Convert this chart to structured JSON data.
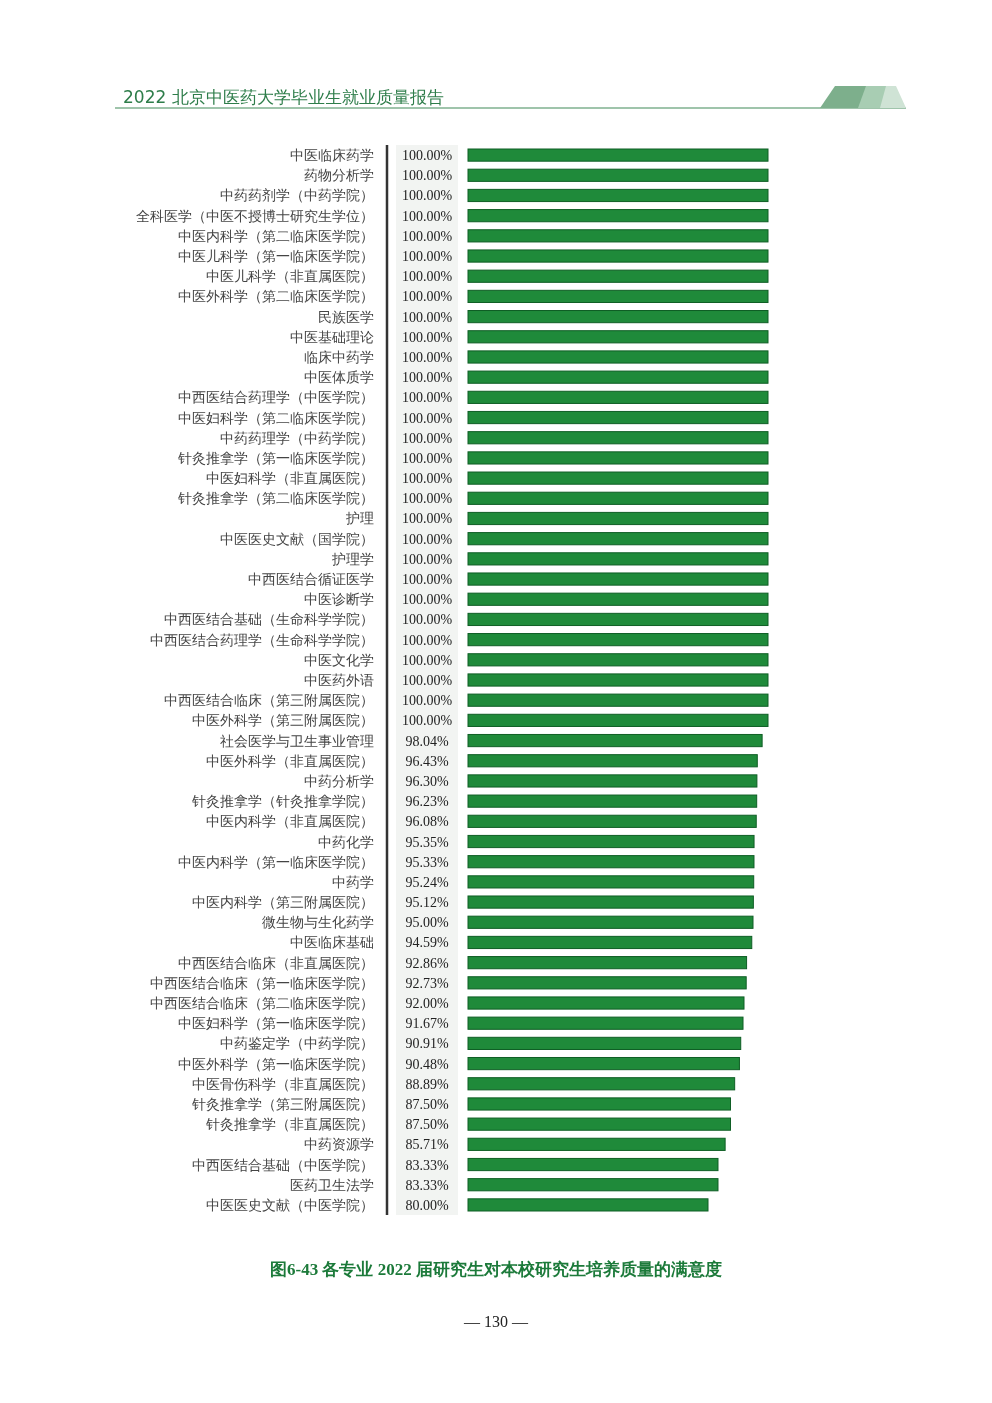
{
  "chart_data": {
    "type": "bar",
    "orientation": "horizontal",
    "title": "图6-43 各专业 2022 届研究生对本校研究生培养质量的满意度",
    "annotations": [
      "2022 北京中医药大学毕业生就业质量报告",
      "— 130 —"
    ],
    "categories": [
      "中医临床药学",
      "药物分析学",
      "中药药剂学（中药学院）",
      "全科医学（中医不授博士研究生学位）",
      "中医内科学（第二临床医学院）",
      "中医儿科学（第一临床医学院）",
      "中医儿科学（非直属医院）",
      "中医外科学（第二临床医学院）",
      "民族医学",
      "中医基础理论",
      "临床中药学",
      "中医体质学",
      "中西医结合药理学（中医学院）",
      "中医妇科学（第二临床医学院）",
      "中药药理学（中药学院）",
      "针灸推拿学（第一临床医学院）",
      "中医妇科学（非直属医院）",
      "针灸推拿学（第二临床医学院）",
      "护理",
      "中医医史文献（国学院）",
      "护理学",
      "中西医结合循证医学",
      "中医诊断学",
      "中西医结合基础（生命科学学院）",
      "中西医结合药理学（生命科学学院）",
      "中医文化学",
      "中医药外语",
      "中西医结合临床（第三附属医院）",
      "中医外科学（第三附属医院）",
      "社会医学与卫生事业管理",
      "中医外科学（非直属医院）",
      "中药分析学",
      "针灸推拿学（针灸推拿学院）",
      "中医内科学（非直属医院）",
      "中药化学",
      "中医内科学（第一临床医学院）",
      "中药学",
      "中医内科学（第三附属医院）",
      "微生物与生化药学",
      "中医临床基础",
      "中西医结合临床（非直属医院）",
      "中西医结合临床（第一临床医学院）",
      "中西医结合临床（第二临床医学院）",
      "中医妇科学（第一临床医学院）",
      "中药鉴定学（中药学院）",
      "中医外科学（第一临床医学院）",
      "中医骨伤科学（非直属医院）",
      "针灸推拿学（第三附属医院）",
      "针灸推拿学（非直属医院）",
      "中药资源学",
      "中西医结合基础（中医学院）",
      "医药卫生法学",
      "中医医史文献（中医学院）"
    ],
    "values": [
      100,
      100,
      100,
      100,
      100,
      100,
      100,
      100,
      100,
      100,
      100,
      100,
      100,
      100,
      100,
      100,
      100,
      100,
      100,
      100,
      100,
      100,
      100,
      100,
      100,
      100,
      100,
      100,
      100,
      98.04,
      96.43,
      96.3,
      96.23,
      96.08,
      95.35,
      95.33,
      95.24,
      95.12,
      95.0,
      94.59,
      92.86,
      92.73,
      92.0,
      91.67,
      90.91,
      90.48,
      88.89,
      87.5,
      87.5,
      85.71,
      83.33,
      83.33,
      80.0
    ],
    "value_labels": [
      "100.00%",
      "100.00%",
      "100.00%",
      "100.00%",
      "100.00%",
      "100.00%",
      "100.00%",
      "100.00%",
      "100.00%",
      "100.00%",
      "100.00%",
      "100.00%",
      "100.00%",
      "100.00%",
      "100.00%",
      "100.00%",
      "100.00%",
      "100.00%",
      "100.00%",
      "100.00%",
      "100.00%",
      "100.00%",
      "100.00%",
      "100.00%",
      "100.00%",
      "100.00%",
      "100.00%",
      "100.00%",
      "100.00%",
      "98.04%",
      "96.43%",
      "96.30%",
      "96.23%",
      "96.08%",
      "95.35%",
      "95.33%",
      "95.24%",
      "95.12%",
      "95.00%",
      "94.59%",
      "92.86%",
      "92.73%",
      "92.00%",
      "91.67%",
      "90.91%",
      "90.48%",
      "88.89%",
      "87.50%",
      "87.50%",
      "85.71%",
      "83.33%",
      "83.33%",
      "80.00%"
    ],
    "color": "#1f8a3a"
  }
}
